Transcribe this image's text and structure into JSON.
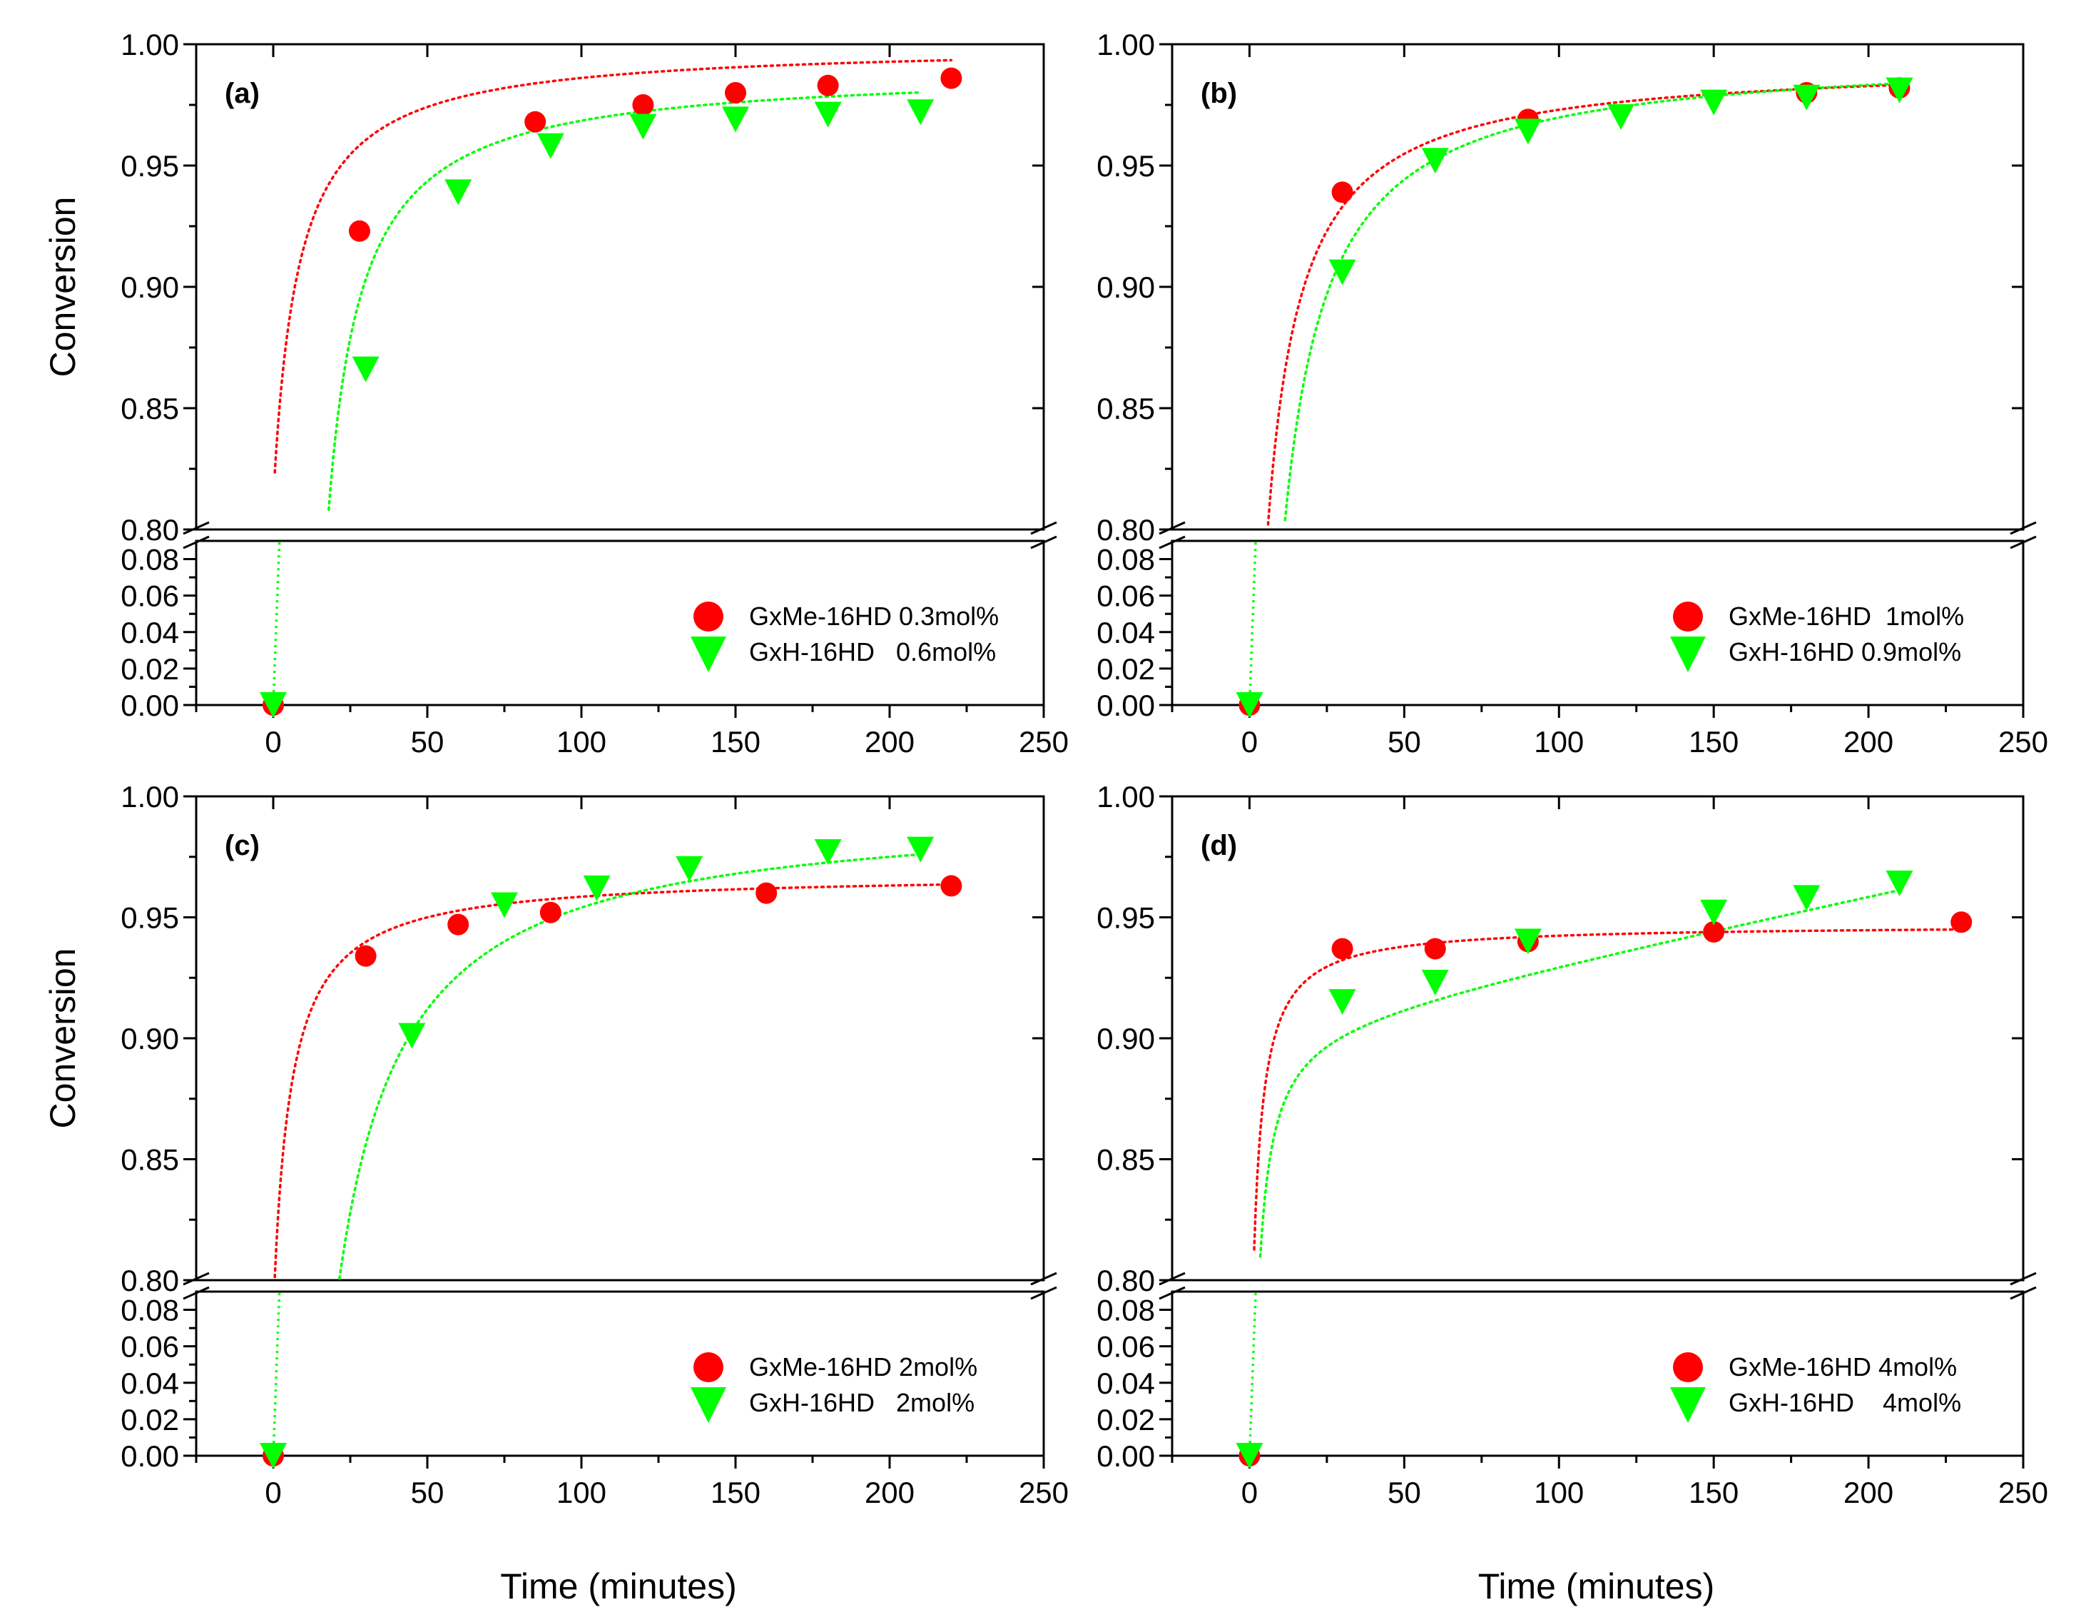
{
  "figure": {
    "x_axis_title": "Time (minutes)",
    "y_axis_title": "Conversion"
  },
  "colors": {
    "series_red": "#ff0000",
    "series_green": "#00ff00",
    "axis": "#000000"
  },
  "chart_data": [
    {
      "type": "scatter",
      "panel_label": "(a)",
      "xlabel": "Time (minutes)",
      "ylabel": "Conversion",
      "xlim": [
        -25,
        250
      ],
      "xticks": [
        0,
        50,
        100,
        150,
        200,
        250
      ],
      "x_tick_labels": [
        "0",
        "50",
        "100",
        "150",
        "200",
        "250"
      ],
      "y_broken_axis": true,
      "y_upper_range": [
        0.8,
        1.0
      ],
      "y_upper_tick_labels": [
        "0.80",
        "0.85",
        "0.90",
        "0.95",
        "1.00"
      ],
      "y_lower_range": [
        0.0,
        0.09
      ],
      "y_lower_tick_labels": [
        "0.00",
        "0.02",
        "0.04",
        "0.06",
        "0.08"
      ],
      "legend_position": "bottom-right",
      "series": [
        {
          "name": "GxMe-16HD 0.3mol%",
          "marker": "circle",
          "color": "#ff0000",
          "x": [
            0,
            28,
            85,
            120,
            150,
            180,
            220
          ],
          "y": [
            0.0,
            0.923,
            0.968,
            0.975,
            0.98,
            0.983,
            0.986
          ],
          "fit": {
            "model": "a + b/(t - c)",
            "a": 1.0,
            "b": -1.5,
            "c": -8.0
          }
        },
        {
          "name": "GxH-16HD   0.6mol%",
          "marker": "triangle-down",
          "color": "#00ff00",
          "x": [
            0,
            30,
            60,
            90,
            120,
            150,
            180,
            210
          ],
          "y": [
            0.0,
            0.866,
            0.939,
            0.958,
            0.966,
            0.969,
            0.971,
            0.972
          ],
          "fit": {
            "model": "a + b/(t - c)",
            "a": 0.99,
            "b": -2.0,
            "c": 7.0
          }
        }
      ]
    },
    {
      "type": "scatter",
      "panel_label": "(b)",
      "xlabel": "Time (minutes)",
      "ylabel": "Conversion",
      "xlim": [
        -25,
        250
      ],
      "xticks": [
        0,
        50,
        100,
        150,
        200,
        250
      ],
      "x_tick_labels": [
        "0",
        "50",
        "100",
        "150",
        "200",
        "250"
      ],
      "y_broken_axis": true,
      "y_upper_range": [
        0.8,
        1.0
      ],
      "y_upper_tick_labels": [
        "0.80",
        "0.85",
        "0.90",
        "0.95",
        "1.00"
      ],
      "y_lower_range": [
        0.0,
        0.09
      ],
      "y_lower_tick_labels": [
        "0.00",
        "0.02",
        "0.04",
        "0.06",
        "0.08"
      ],
      "legend_position": "bottom-right",
      "series": [
        {
          "name": "GxMe-16HD  1mol%",
          "marker": "circle",
          "color": "#ff0000",
          "x": [
            0,
            30,
            90,
            180,
            210
          ],
          "y": [
            0.0,
            0.939,
            0.969,
            0.98,
            0.982
          ],
          "fit": {
            "model": "a + b/(t - c)",
            "a": 0.993,
            "b": -2.1,
            "c": -5.0
          }
        },
        {
          "name": "GxH-16HD 0.9mol%",
          "marker": "triangle-down",
          "color": "#00ff00",
          "x": [
            0,
            30,
            60,
            90,
            120,
            150,
            180,
            210
          ],
          "y": [
            0.0,
            0.906,
            0.952,
            0.964,
            0.97,
            0.976,
            0.978,
            0.981
          ],
          "fit": {
            "model": "a + b/(t - c)",
            "a": 0.997,
            "b": -2.8,
            "c": -3.0
          }
        }
      ]
    },
    {
      "type": "scatter",
      "panel_label": "(c)",
      "xlabel": "Time (minutes)",
      "ylabel": "Conversion",
      "xlim": [
        -25,
        250
      ],
      "xticks": [
        0,
        50,
        100,
        150,
        200,
        250
      ],
      "x_tick_labels": [
        "0",
        "50",
        "100",
        "150",
        "200",
        "250"
      ],
      "y_broken_axis": true,
      "y_upper_range": [
        0.8,
        1.0
      ],
      "y_upper_tick_labels": [
        "0.80",
        "0.85",
        "0.90",
        "0.95",
        "1.00"
      ],
      "y_lower_range": [
        0.0,
        0.09
      ],
      "y_lower_tick_labels": [
        "0.00",
        "0.02",
        "0.04",
        "0.06",
        "0.08"
      ],
      "legend_position": "bottom-right",
      "series": [
        {
          "name": "GxMe-16HD 2mol%",
          "marker": "circle",
          "color": "#ff0000",
          "x": [
            0,
            30,
            60,
            90,
            160,
            220
          ],
          "y": [
            0.0,
            0.934,
            0.947,
            0.952,
            0.96,
            0.963
          ],
          "fit": {
            "model": "a + b/(t - c)",
            "a": 0.968,
            "b": -1.0,
            "c": -5.5
          }
        },
        {
          "name": "GxH-16HD   2mol%",
          "marker": "triangle-down",
          "color": "#00ff00",
          "x": [
            0,
            45,
            75,
            105,
            135,
            180,
            210
          ],
          "y": [
            0.0,
            0.901,
            0.955,
            0.962,
            0.97,
            0.977,
            0.978
          ],
          "fit": {
            "model": "a + b/(t - c)",
            "a": 0.996,
            "b": -4.2,
            "c": 0.0
          }
        }
      ]
    },
    {
      "type": "scatter",
      "panel_label": "(d)",
      "xlabel": "Time (minutes)",
      "ylabel": "Conversion",
      "xlim": [
        -25,
        250
      ],
      "xticks": [
        0,
        50,
        100,
        150,
        200,
        250
      ],
      "x_tick_labels": [
        "0",
        "50",
        "100",
        "150",
        "200",
        "250"
      ],
      "y_broken_axis": true,
      "y_upper_range": [
        0.8,
        1.0
      ],
      "y_upper_tick_labels": [
        "0.80",
        "0.85",
        "0.90",
        "0.95",
        "1.00"
      ],
      "y_lower_range": [
        0.0,
        0.09
      ],
      "y_lower_tick_labels": [
        "0.00",
        "0.02",
        "0.04",
        "0.06",
        "0.08"
      ],
      "legend_position": "bottom-right",
      "series": [
        {
          "name": "GxMe-16HD 4mol%",
          "marker": "circle",
          "color": "#ff0000",
          "x": [
            0,
            30,
            60,
            90,
            150,
            230
          ],
          "y": [
            0.0,
            0.937,
            0.937,
            0.94,
            0.944,
            0.948
          ],
          "fit": {
            "model": "a + b/(t - c)",
            "a": 0.947,
            "b": -0.47,
            "c": -2.0
          }
        },
        {
          "name": "GxH-16HD    4mol%",
          "marker": "triangle-down",
          "color": "#00ff00",
          "x": [
            0,
            30,
            60,
            90,
            150,
            180,
            210
          ],
          "y": [
            0.0,
            0.915,
            0.923,
            0.94,
            0.952,
            0.958,
            0.964
          ],
          "fit": {
            "model": "linear-plus-hyperbola",
            "a": 0.9066,
            "b": -0.44,
            "c": -1.0,
            "m": 0.00027
          }
        }
      ]
    }
  ]
}
